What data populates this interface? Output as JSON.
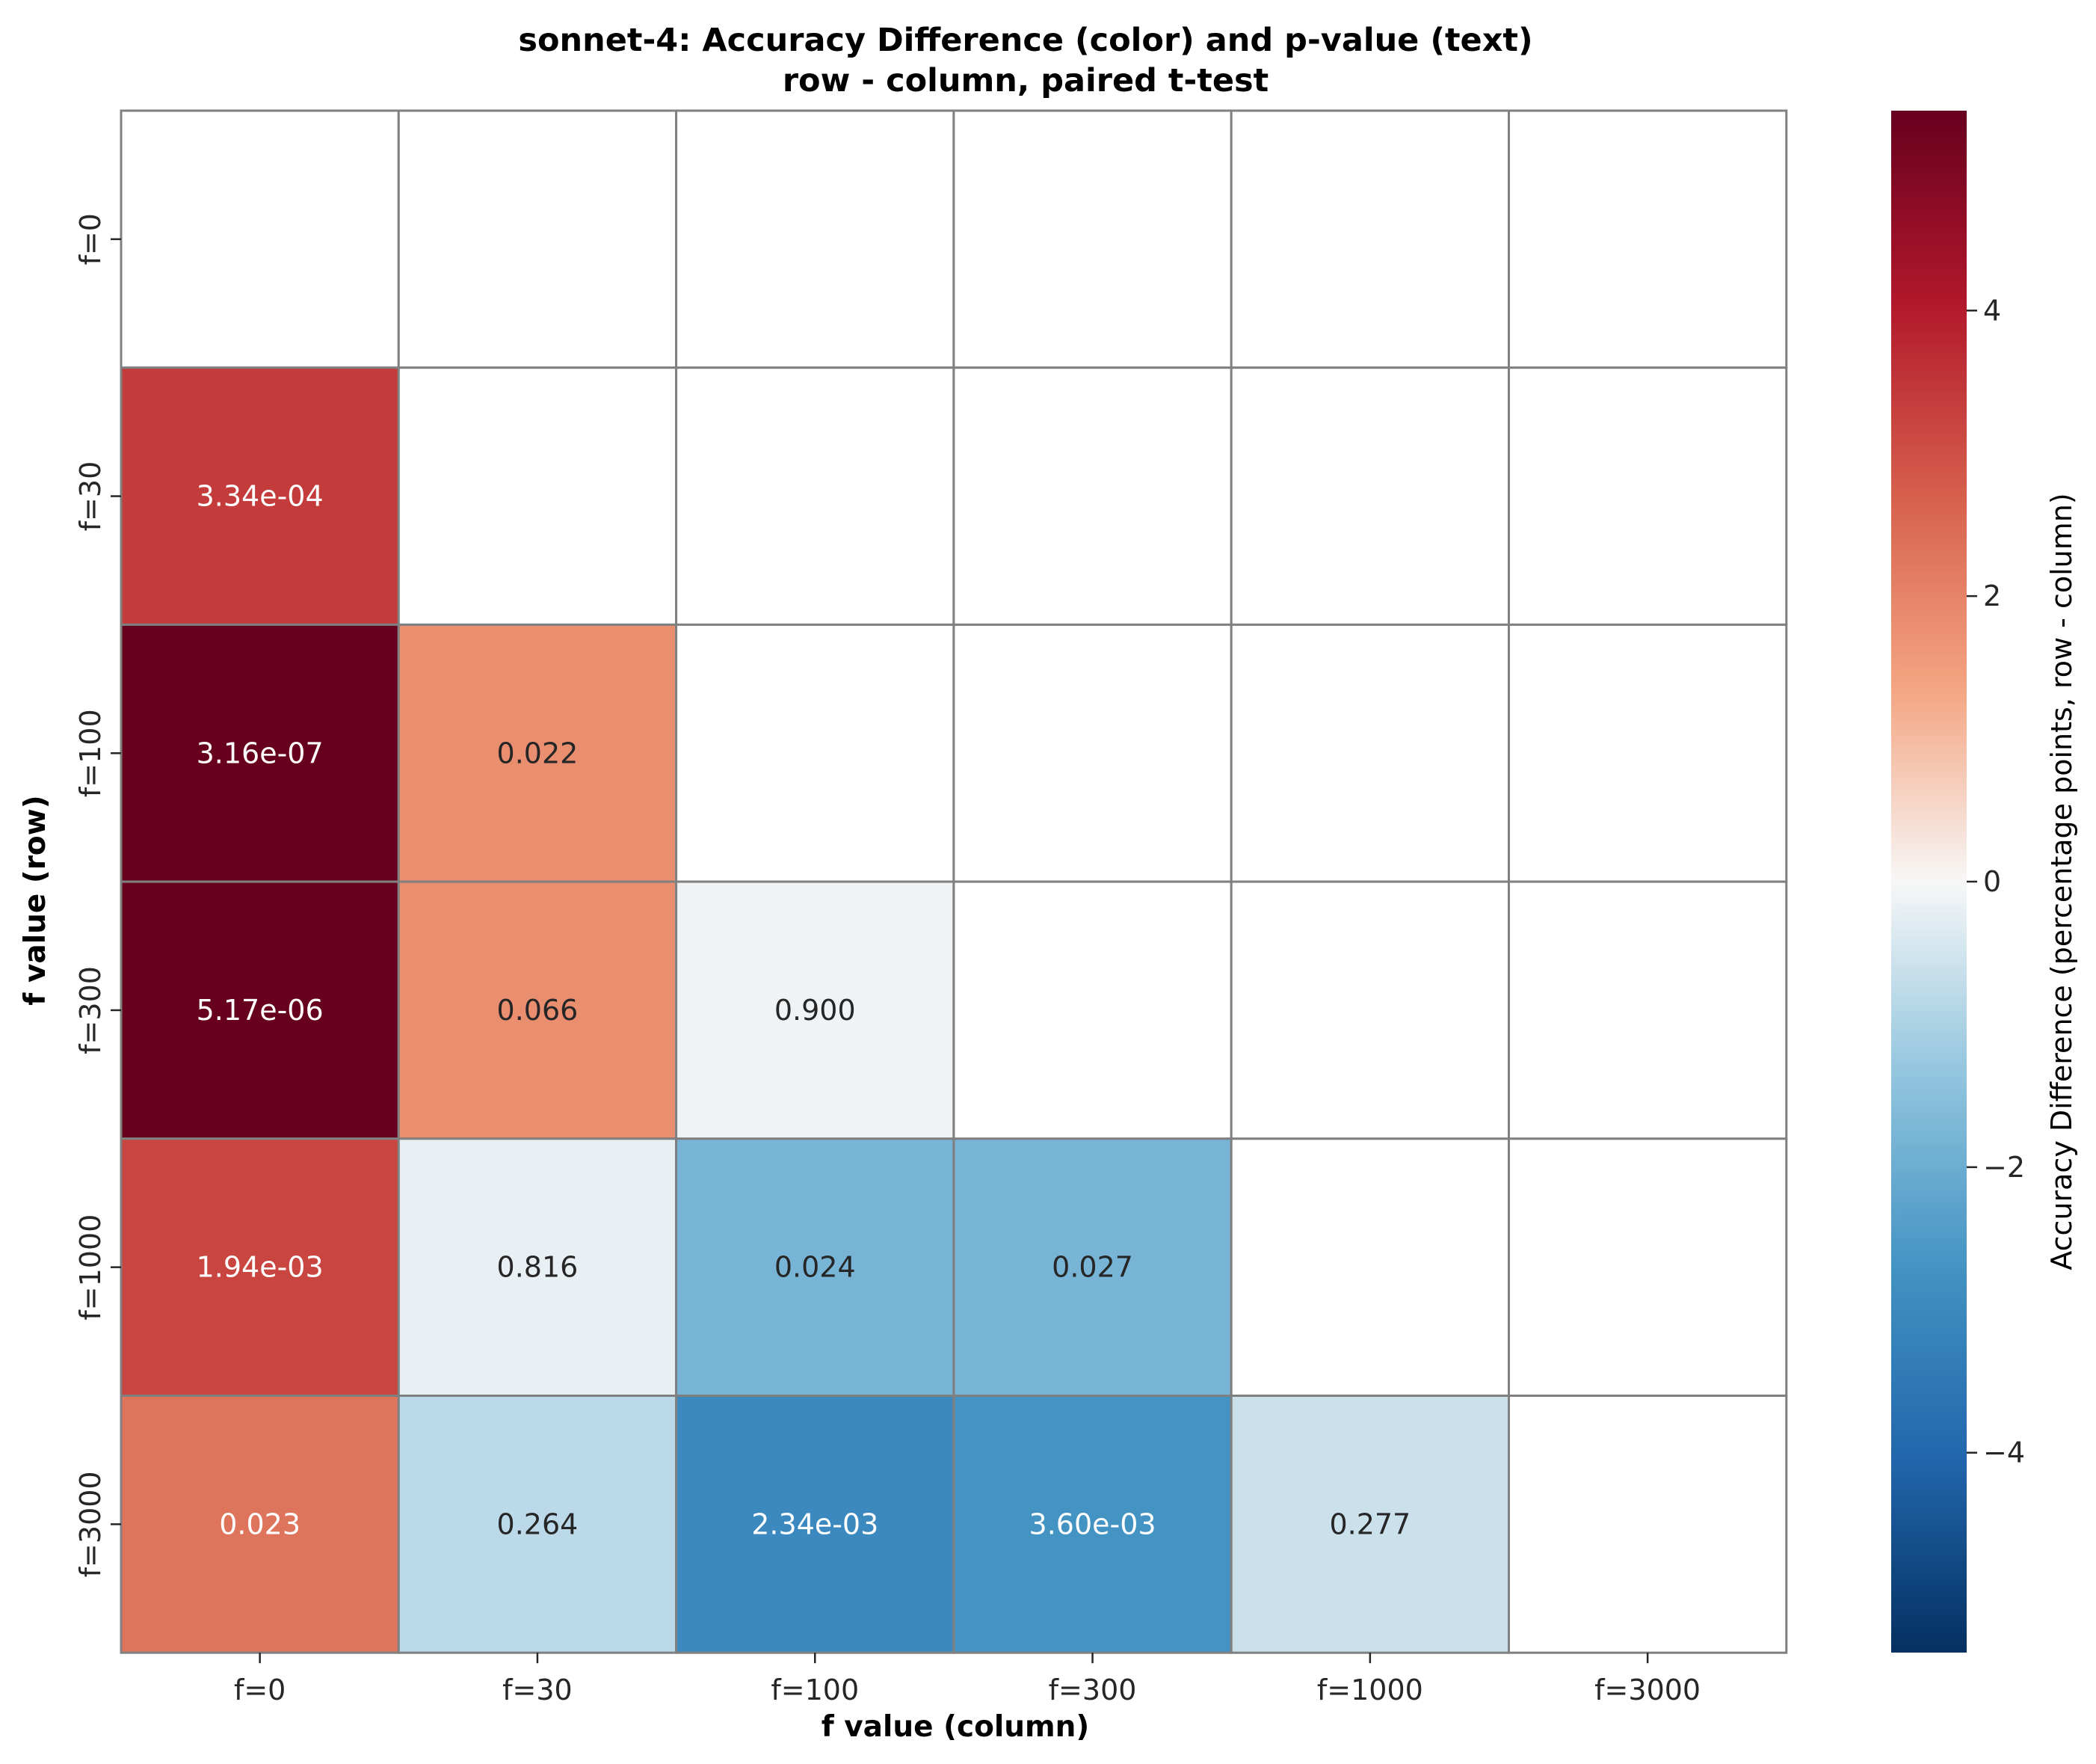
{
  "chart_data": {
    "type": "heatmap",
    "title_lines": [
      "sonnet-4: Accuracy Difference (color) and p-value (text)",
      "row - column, paired t-test"
    ],
    "xlabel": "f value (column)",
    "ylabel": "f value (row)",
    "x_categories": [
      "f=0",
      "f=30",
      "f=100",
      "f=300",
      "f=1000",
      "f=3000"
    ],
    "y_categories": [
      "f=0",
      "f=30",
      "f=100",
      "f=300",
      "f=1000",
      "f=3000"
    ],
    "colormap": "RdBu_r",
    "vmin": -5.4,
    "vmax": 5.4,
    "colorbar": {
      "label": "Accuracy Difference (percentage points, row - column)",
      "tick_values": [
        4,
        2,
        0,
        -2,
        -4
      ],
      "tick_labels": [
        "4",
        "2",
        "0",
        "−2",
        "−4"
      ]
    },
    "cells": [
      {
        "row": 1,
        "col": 0,
        "value": 3.4,
        "label": "3.34e-04"
      },
      {
        "row": 2,
        "col": 0,
        "value": 5.4,
        "label": "3.16e-07"
      },
      {
        "row": 2,
        "col": 1,
        "value": 1.8,
        "label": "0.022"
      },
      {
        "row": 3,
        "col": 0,
        "value": 5.4,
        "label": "5.17e-06"
      },
      {
        "row": 3,
        "col": 1,
        "value": 1.8,
        "label": "0.066"
      },
      {
        "row": 3,
        "col": 2,
        "value": -0.1,
        "label": "0.900"
      },
      {
        "row": 4,
        "col": 0,
        "value": 3.2,
        "label": "1.94e-03"
      },
      {
        "row": 4,
        "col": 1,
        "value": -0.2,
        "label": "0.816"
      },
      {
        "row": 4,
        "col": 2,
        "value": -1.8,
        "label": "0.024"
      },
      {
        "row": 4,
        "col": 3,
        "value": -1.8,
        "label": "0.027"
      },
      {
        "row": 5,
        "col": 0,
        "value": 2.3,
        "label": "0.023"
      },
      {
        "row": 5,
        "col": 1,
        "value": -0.8,
        "label": "0.264"
      },
      {
        "row": 5,
        "col": 2,
        "value": -3.0,
        "label": "2.34e-03"
      },
      {
        "row": 5,
        "col": 3,
        "value": -2.7,
        "label": "3.60e-03"
      },
      {
        "row": 5,
        "col": 4,
        "value": -0.6,
        "label": "0.277"
      }
    ]
  }
}
